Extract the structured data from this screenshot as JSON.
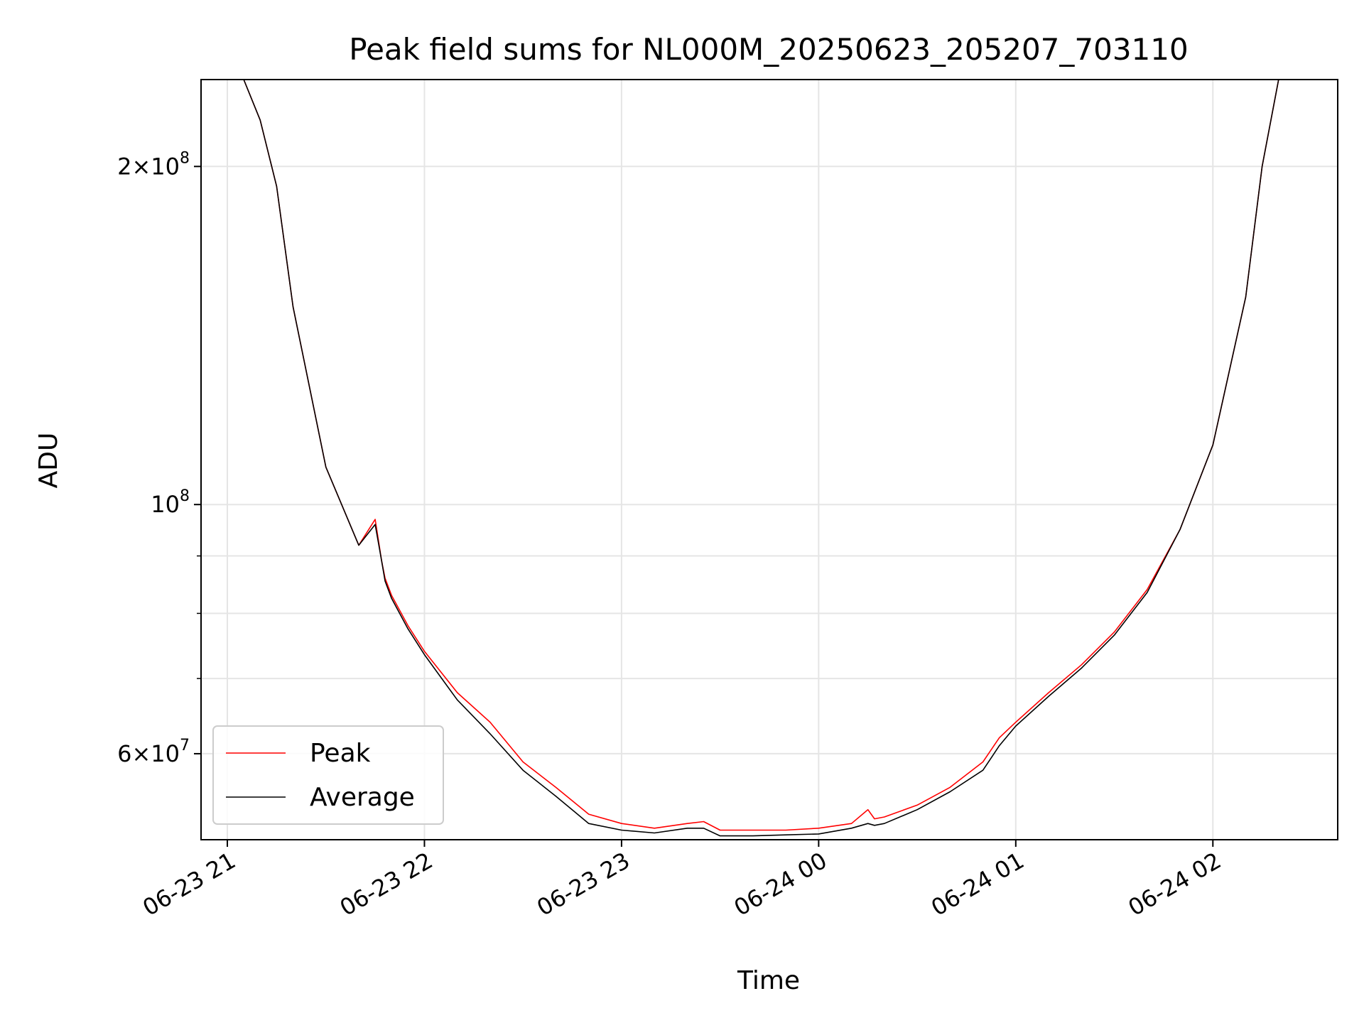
{
  "chart_data": {
    "type": "line",
    "title": "Peak field sums for NL000M_20250623_205207_703110",
    "xlabel": "Time",
    "ylabel": "ADU",
    "y_scale": "log",
    "grid": true,
    "legend_position": "lower-left",
    "x_range": [
      "2025-06-23 20:52",
      "2025-06-24 02:38"
    ],
    "y_range": [
      50300000,
      239000000
    ],
    "x_ticks": [
      {
        "value": "2025-06-23 21:00",
        "label": "06-23 21"
      },
      {
        "value": "2025-06-23 22:00",
        "label": "06-23 22"
      },
      {
        "value": "2025-06-23 23:00",
        "label": "06-23 23"
      },
      {
        "value": "2025-06-24 00:00",
        "label": "06-24 00"
      },
      {
        "value": "2025-06-24 01:00",
        "label": "06-24 01"
      },
      {
        "value": "2025-06-24 02:00",
        "label": "06-24 02"
      }
    ],
    "y_major_ticks": [
      {
        "value": 60000000,
        "mantissa": "6",
        "exponent": "7"
      },
      {
        "value": 100000000,
        "mantissa": "",
        "exponent": "8"
      },
      {
        "value": 200000000,
        "mantissa": "2",
        "exponent": "8"
      }
    ],
    "y_minor_ticks": [
      50000000,
      70000000,
      80000000,
      90000000,
      300000000
    ],
    "series": [
      {
        "name": "Peak",
        "color": "#ff0000",
        "x": [
          "2025-06-23 20:52",
          "2025-06-23 21:05",
          "2025-06-23 21:10",
          "2025-06-23 21:15",
          "2025-06-23 21:20",
          "2025-06-23 21:30",
          "2025-06-23 21:40",
          "2025-06-23 21:45",
          "2025-06-23 21:47",
          "2025-06-23 21:48",
          "2025-06-23 21:50",
          "2025-06-23 21:55",
          "2025-06-23 22:00",
          "2025-06-23 22:10",
          "2025-06-23 22:20",
          "2025-06-23 22:30",
          "2025-06-23 22:40",
          "2025-06-23 22:50",
          "2025-06-23 23:00",
          "2025-06-23 23:10",
          "2025-06-23 23:20",
          "2025-06-23 23:25",
          "2025-06-23 23:30",
          "2025-06-23 23:40",
          "2025-06-23 23:50",
          "2025-06-24 00:00",
          "2025-06-24 00:10",
          "2025-06-24 00:15",
          "2025-06-24 00:17",
          "2025-06-24 00:20",
          "2025-06-24 00:30",
          "2025-06-24 00:40",
          "2025-06-24 00:50",
          "2025-06-24 00:55",
          "2025-06-24 01:00",
          "2025-06-24 01:10",
          "2025-06-24 01:20",
          "2025-06-24 01:30",
          "2025-06-24 01:40",
          "2025-06-24 01:50",
          "2025-06-24 02:00",
          "2025-06-24 02:10",
          "2025-06-24 02:15",
          "2025-06-24 02:20",
          "2025-06-24 02:38"
        ],
        "y": [
          239000000,
          239000000,
          220000000,
          192000000,
          150000000,
          108000000,
          92000000,
          97000000,
          89000000,
          86000000,
          83000000,
          78000000,
          74000000,
          68000000,
          64000000,
          59000000,
          56000000,
          53000000,
          52000000,
          51500000,
          52000000,
          52200000,
          51300000,
          51300000,
          51300000,
          51500000,
          52000000,
          53500000,
          52500000,
          52700000,
          54000000,
          56000000,
          59000000,
          62000000,
          64000000,
          68000000,
          72000000,
          77000000,
          84000000,
          95000000,
          113000000,
          153000000,
          200000000,
          239000000,
          239000000
        ]
      },
      {
        "name": "Average",
        "color": "#000000",
        "x": [
          "2025-06-23 20:52",
          "2025-06-23 21:05",
          "2025-06-23 21:10",
          "2025-06-23 21:15",
          "2025-06-23 21:20",
          "2025-06-23 21:30",
          "2025-06-23 21:40",
          "2025-06-23 21:45",
          "2025-06-23 21:47",
          "2025-06-23 21:48",
          "2025-06-23 21:50",
          "2025-06-23 21:55",
          "2025-06-23 22:00",
          "2025-06-23 22:10",
          "2025-06-23 22:20",
          "2025-06-23 22:30",
          "2025-06-23 22:40",
          "2025-06-23 22:50",
          "2025-06-23 23:00",
          "2025-06-23 23:10",
          "2025-06-23 23:20",
          "2025-06-23 23:25",
          "2025-06-23 23:30",
          "2025-06-23 23:40",
          "2025-06-23 23:50",
          "2025-06-24 00:00",
          "2025-06-24 00:10",
          "2025-06-24 00:15",
          "2025-06-24 00:17",
          "2025-06-24 00:20",
          "2025-06-24 00:30",
          "2025-06-24 00:40",
          "2025-06-24 00:50",
          "2025-06-24 00:55",
          "2025-06-24 01:00",
          "2025-06-24 01:10",
          "2025-06-24 01:20",
          "2025-06-24 01:30",
          "2025-06-24 01:40",
          "2025-06-24 01:50",
          "2025-06-24 02:00",
          "2025-06-24 02:10",
          "2025-06-24 02:15",
          "2025-06-24 02:20",
          "2025-06-24 02:38"
        ],
        "y": [
          239000000,
          239000000,
          220000000,
          192000000,
          150000000,
          108000000,
          92000000,
          96000000,
          89000000,
          85500000,
          82500000,
          77500000,
          73500000,
          67000000,
          62500000,
          58000000,
          55000000,
          52000000,
          51300000,
          51000000,
          51500000,
          51500000,
          50700000,
          50700000,
          50800000,
          50900000,
          51500000,
          52000000,
          51800000,
          52000000,
          53500000,
          55500000,
          58000000,
          61000000,
          63500000,
          67500000,
          71500000,
          76500000,
          83500000,
          95000000,
          113000000,
          153000000,
          200000000,
          239000000,
          239000000
        ]
      }
    ]
  }
}
